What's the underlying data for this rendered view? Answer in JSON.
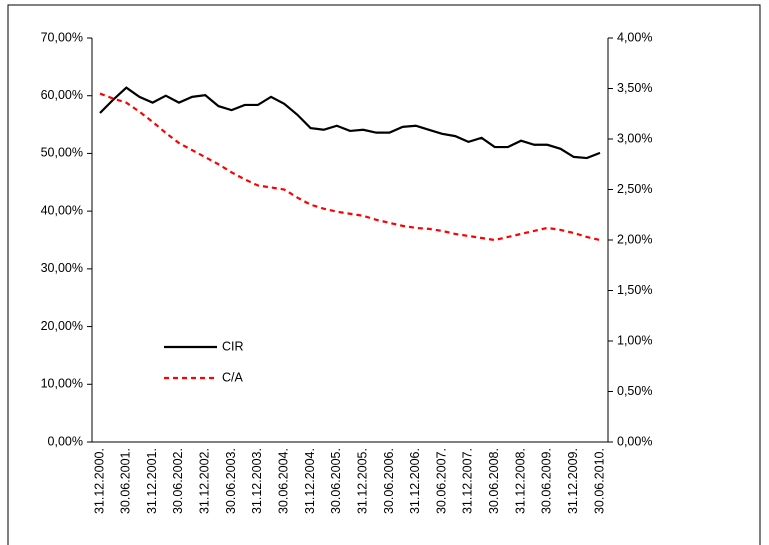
{
  "chart_data": {
    "type": "line",
    "categories": [
      "31.12.2000.",
      null,
      "30.06.2001.",
      null,
      "31.12.2001.",
      null,
      "30.06.2002.",
      null,
      "31.12.2002.",
      null,
      "30.06.2003.",
      null,
      "31.12.2003.",
      null,
      "30.06.2004.",
      null,
      "31.12.2004.",
      null,
      "30.06.2005.",
      null,
      "31.12.2005.",
      null,
      "30.06.2006.",
      null,
      "31.12.2006.",
      null,
      "30.06.2007.",
      null,
      "31.12.2007.",
      null,
      "30.06.2008.",
      null,
      "31.12.2008.",
      null,
      "30.06.2009.",
      null,
      "31.12.2009.",
      null,
      "30.06.2010."
    ],
    "series": [
      {
        "name": "CIR",
        "color": "#000000",
        "line_style": "solid",
        "values": [
          57.0,
          59.3,
          61.4,
          59.8,
          58.8,
          60.0,
          58.8,
          59.8,
          60.1,
          58.2,
          57.5,
          58.4,
          58.4,
          59.8,
          58.6,
          56.7,
          54.4,
          54.1,
          54.8,
          53.9,
          54.1,
          53.6,
          53.6,
          54.6,
          54.8,
          54.1,
          53.4,
          53.0,
          52.0,
          52.7,
          51.1,
          51.1,
          52.2,
          51.5,
          51.5,
          50.8,
          49.4,
          49.2,
          50.1
        ]
      },
      {
        "name": "C/A",
        "color": "#ff0000",
        "line_style": "dashed",
        "axis": "y2",
        "values": [
          3.45,
          3.4,
          3.36,
          3.27,
          3.17,
          3.06,
          2.96,
          2.89,
          2.82,
          2.75,
          2.67,
          2.6,
          2.54,
          2.52,
          2.5,
          2.42,
          2.35,
          2.31,
          2.28,
          2.26,
          2.24,
          2.2,
          2.17,
          2.14,
          2.12,
          2.11,
          2.09,
          2.06,
          2.04,
          2.02,
          2.0,
          2.03,
          2.06,
          2.09,
          2.12,
          2.1,
          2.07,
          2.03,
          2.0
        ]
      }
    ],
    "ylim": [
      0,
      70
    ],
    "yticks": [
      {
        "value": 0,
        "label": "0,00%"
      },
      {
        "value": 10,
        "label": "10,00%"
      },
      {
        "value": 20,
        "label": "20,00%"
      },
      {
        "value": 30,
        "label": "30,00%"
      },
      {
        "value": 40,
        "label": "40,00%"
      },
      {
        "value": 50,
        "label": "50,00%"
      },
      {
        "value": 60,
        "label": "60,00%"
      },
      {
        "value": 70,
        "label": "70,00%"
      }
    ],
    "y2lim": [
      0,
      4
    ],
    "y2ticks": [
      {
        "value": 0,
        "label": "0,00%"
      },
      {
        "value": 0.5,
        "label": "0,50%"
      },
      {
        "value": 1,
        "label": "1,00%"
      },
      {
        "value": 1.5,
        "label": "1,50%"
      },
      {
        "value": 2,
        "label": "2,00%"
      },
      {
        "value": 2.5,
        "label": "2,50%"
      },
      {
        "value": 3,
        "label": "3,00%"
      },
      {
        "value": 3.5,
        "label": "3,50%"
      },
      {
        "value": 4,
        "label": "4,00%"
      }
    ],
    "grid": false
  }
}
